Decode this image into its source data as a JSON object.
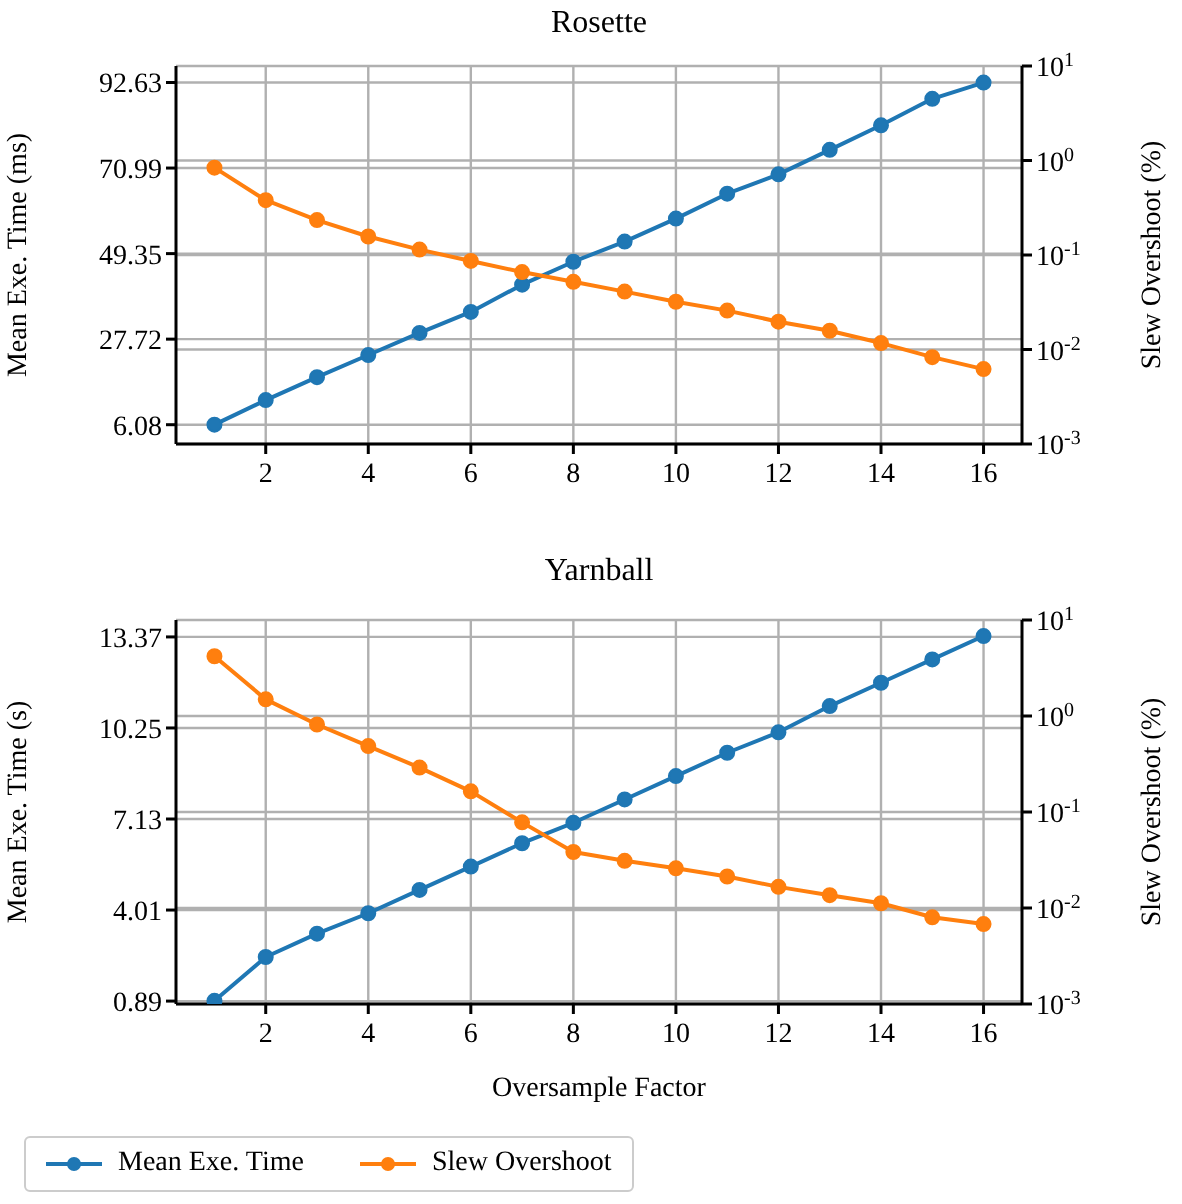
{
  "chart_data": [
    {
      "type": "line",
      "title": "Rosette",
      "ylabel": "Mean Exe. Time (ms)",
      "y2label": "Slew Overshoot (%)",
      "x": [
        1,
        2,
        3,
        4,
        5,
        6,
        7,
        8,
        9,
        10,
        11,
        12,
        13,
        14,
        15,
        16
      ],
      "xlim": [
        0.25,
        16.75
      ],
      "xticks": [
        2,
        4,
        6,
        8,
        10,
        12,
        14,
        16
      ],
      "ylim": [
        1.2,
        96.8
      ],
      "yticks": [
        6.08,
        27.72,
        49.35,
        70.99,
        92.63
      ],
      "y2lim": [
        0.001,
        10
      ],
      "y2ticks": [
        {
          "value": 0.001,
          "label": "10$^{-3}$"
        },
        {
          "value": 0.01,
          "label": "10$^{-2}$"
        },
        {
          "value": 0.1,
          "label": "10$^{-1}$"
        },
        {
          "value": 1,
          "label": "10$^{0}$"
        },
        {
          "value": 10,
          "label": "10$^{1}$"
        }
      ],
      "log": "y2",
      "grid": true,
      "marker": "circle",
      "line_style": "solid",
      "series": [
        {
          "color": "#1f77b4",
          "values": [
            6.1,
            12.3,
            18.1,
            23.7,
            29.3,
            34.6,
            41.5,
            47.3,
            52.4,
            58.2,
            64.5,
            69.4,
            75.6,
            81.8,
            88.5,
            92.6
          ]
        },
        {
          "color": "#ff7f0e",
          "axis": "y2",
          "values": [
            0.84,
            0.38,
            0.234,
            0.157,
            0.114,
            0.0865,
            0.066,
            0.052,
            0.041,
            0.032,
            0.0258,
            0.0197,
            0.0158,
            0.0117,
            0.0083,
            0.0062
          ]
        }
      ]
    },
    {
      "type": "line",
      "title": "Yarnball",
      "xlabel": "Oversample Factor",
      "ylabel": "Mean Exe. Time (s)",
      "y2label": "Slew Overshoot (%)",
      "x": [
        1,
        2,
        3,
        4,
        5,
        6,
        7,
        8,
        9,
        10,
        11,
        12,
        13,
        14,
        15,
        16
      ],
      "xlim": [
        0.25,
        16.75
      ],
      "xticks": [
        2,
        4,
        6,
        8,
        10,
        12,
        14,
        16
      ],
      "ylim": [
        0.79,
        13.95
      ],
      "yticks": [
        0.89,
        4.01,
        7.13,
        10.25,
        13.37
      ],
      "y2lim": [
        0.001,
        10
      ],
      "y2ticks": [
        {
          "value": 0.001,
          "label": "10$^{-3}$"
        },
        {
          "value": 0.01,
          "label": "10$^{-2}$"
        },
        {
          "value": 0.1,
          "label": "10$^{-1}$"
        },
        {
          "value": 1,
          "label": "10$^{0}$"
        },
        {
          "value": 10,
          "label": "10$^{1}$"
        }
      ],
      "log": "y2",
      "grid": true,
      "marker": "circle",
      "line_style": "solid",
      "legend": "bottom",
      "series": [
        {
          "name": "Mean Exe. Time",
          "color": "#1f77b4",
          "values": [
            0.9,
            2.4,
            3.2,
            3.9,
            4.7,
            5.5,
            6.3,
            7.0,
            7.8,
            8.6,
            9.4,
            10.1,
            11.0,
            11.8,
            12.6,
            13.4
          ]
        },
        {
          "name": "Slew Overshoot",
          "color": "#ff7f0e",
          "axis": "y2",
          "values": [
            4.19,
            1.49,
            0.815,
            0.486,
            0.29,
            0.164,
            0.078,
            0.0383,
            0.031,
            0.0259,
            0.0213,
            0.0166,
            0.0136,
            0.0112,
            0.008,
            0.0068
          ]
        }
      ]
    }
  ]
}
